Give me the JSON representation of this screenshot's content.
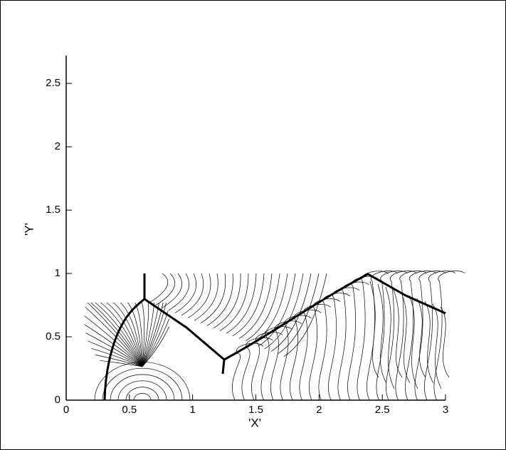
{
  "chart_data": {
    "type": "contour",
    "x_label": "'X'",
    "y_label": "'Y'",
    "xlim": [
      0,
      3
    ],
    "ylim": [
      0,
      2.72
    ],
    "xticks": [
      0,
      0.5,
      1,
      1.5,
      2,
      2.5,
      3
    ],
    "yticks": [
      0,
      0.5,
      1,
      1.5,
      2,
      2.5
    ]
  }
}
